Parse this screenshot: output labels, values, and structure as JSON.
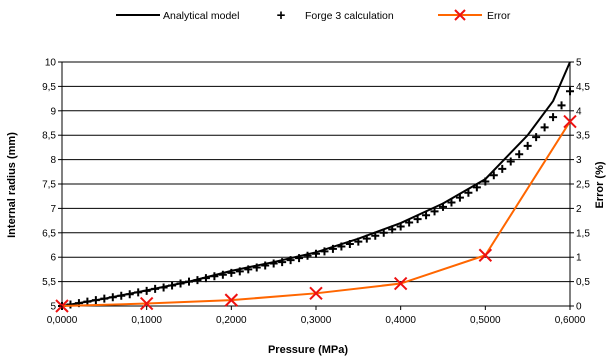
{
  "chart_data": {
    "type": "line",
    "title": "",
    "xlabel": "Pressure (MPa)",
    "ylabel": "Internal radius (mm)",
    "y2label": "Error (%)",
    "xlim": [
      0,
      0.6
    ],
    "ylim": [
      5,
      10
    ],
    "y2lim": [
      0,
      5
    ],
    "grid": "horizontal",
    "legend_position": "top",
    "x_tick_labels": [
      "0,0000",
      "0,1000",
      "0,2000",
      "0,3000",
      "0,4000",
      "0,5000",
      "0,6000"
    ],
    "y_tick_labels": [
      "5",
      "5,5",
      "6",
      "6,5",
      "7",
      "7,5",
      "8",
      "8,5",
      "9",
      "9,5",
      "10"
    ],
    "y2_tick_labels": [
      "0",
      "0,5",
      "1",
      "1,5",
      "2",
      "2,5",
      "3",
      "3,5",
      "4",
      "4,5",
      "5"
    ],
    "series": [
      {
        "name": "Analytical model",
        "axis": "left",
        "style": "line",
        "color": "#000000",
        "x": [
          0,
          0.05,
          0.1,
          0.15,
          0.2,
          0.25,
          0.3,
          0.35,
          0.4,
          0.45,
          0.5,
          0.55,
          0.58,
          0.6
        ],
        "values": [
          5.0,
          5.15,
          5.32,
          5.5,
          5.72,
          5.9,
          6.1,
          6.38,
          6.7,
          7.1,
          7.6,
          8.5,
          9.2,
          10.0
        ]
      },
      {
        "name": "Forge 3 calculation",
        "axis": "left",
        "style": "plus-markers",
        "color": "#000000",
        "x": [
          0,
          0.01,
          0.02,
          0.03,
          0.04,
          0.05,
          0.06,
          0.07,
          0.08,
          0.09,
          0.1,
          0.11,
          0.12,
          0.13,
          0.14,
          0.15,
          0.16,
          0.17,
          0.18,
          0.19,
          0.2,
          0.21,
          0.22,
          0.23,
          0.24,
          0.25,
          0.26,
          0.27,
          0.28,
          0.29,
          0.3,
          0.31,
          0.32,
          0.33,
          0.34,
          0.35,
          0.36,
          0.37,
          0.38,
          0.39,
          0.4,
          0.41,
          0.42,
          0.43,
          0.44,
          0.45,
          0.46,
          0.47,
          0.48,
          0.49,
          0.5,
          0.51,
          0.52,
          0.53,
          0.54,
          0.55,
          0.56,
          0.57,
          0.58,
          0.59,
          0.6
        ],
        "values": [
          5.0,
          5.03,
          5.06,
          5.09,
          5.12,
          5.15,
          5.18,
          5.21,
          5.24,
          5.28,
          5.31,
          5.35,
          5.38,
          5.42,
          5.46,
          5.5,
          5.53,
          5.57,
          5.61,
          5.64,
          5.68,
          5.71,
          5.75,
          5.79,
          5.83,
          5.87,
          5.9,
          5.94,
          5.98,
          6.03,
          6.07,
          6.12,
          6.17,
          6.22,
          6.27,
          6.32,
          6.38,
          6.44,
          6.5,
          6.57,
          6.63,
          6.71,
          6.78,
          6.86,
          6.94,
          7.03,
          7.12,
          7.22,
          7.32,
          7.43,
          7.55,
          7.68,
          7.81,
          7.96,
          8.11,
          8.28,
          8.46,
          8.66,
          8.87,
          9.11,
          9.4
        ]
      },
      {
        "name": "Error",
        "axis": "right",
        "style": "line-x-markers",
        "color": "#ff6600",
        "x": [
          0,
          0.1,
          0.2,
          0.3,
          0.4,
          0.5,
          0.6
        ],
        "values": [
          0,
          0.05,
          0.12,
          0.26,
          0.46,
          1.04,
          3.78
        ]
      }
    ]
  }
}
